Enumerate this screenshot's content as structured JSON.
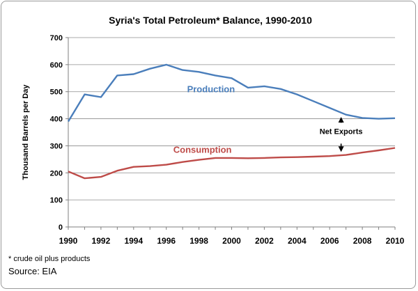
{
  "footnote": "* crude oil plus products",
  "source": "Source: EIA",
  "colors": {
    "production": "#4a7ebb",
    "consumption": "#be4b48"
  },
  "chart_data": {
    "type": "line",
    "title": "Syria's Total Petroleum* Balance, 1990-2010",
    "xlabel": "",
    "ylabel": "Thousand Barrels per Day",
    "xlim": [
      1990,
      2010
    ],
    "ylim": [
      0,
      700
    ],
    "xticks": [
      1990,
      1992,
      1994,
      1996,
      1998,
      2000,
      2002,
      2004,
      2006,
      2008,
      2010
    ],
    "yticks": [
      0,
      100,
      200,
      300,
      400,
      500,
      600,
      700
    ],
    "grid": "horizontal",
    "x": [
      1990,
      1991,
      1992,
      1993,
      1994,
      1995,
      1996,
      1997,
      1998,
      1999,
      2000,
      2001,
      2002,
      2003,
      2004,
      2005,
      2006,
      2007,
      2008,
      2009,
      2010
    ],
    "series": [
      {
        "name": "Production",
        "values": [
          390,
          490,
          480,
          560,
          565,
          585,
          600,
          580,
          573,
          560,
          550,
          515,
          520,
          510,
          490,
          465,
          440,
          415,
          403,
          400,
          402
        ]
      },
      {
        "name": "Consumption",
        "values": [
          205,
          180,
          185,
          208,
          222,
          225,
          230,
          240,
          248,
          255,
          255,
          254,
          255,
          257,
          258,
          260,
          262,
          266,
          275,
          283,
          292
        ]
      }
    ],
    "annotations": [
      {
        "text": "Net Exports",
        "x": 2006.7
      }
    ]
  }
}
